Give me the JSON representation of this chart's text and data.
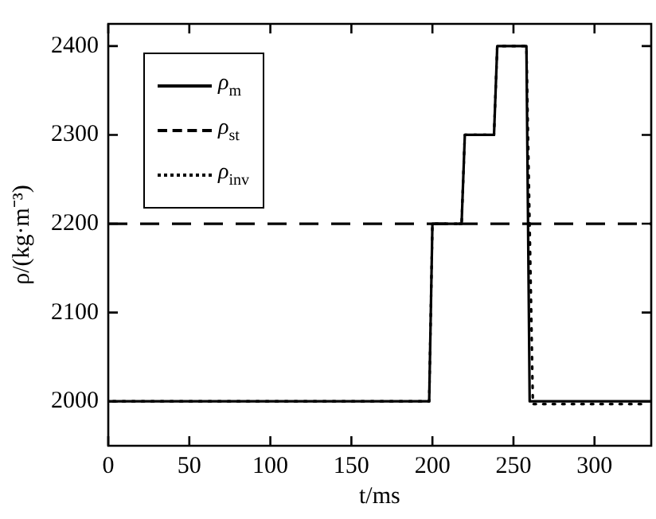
{
  "chart_data": {
    "type": "line",
    "xlabel": "t/ms",
    "ylabel": "ρ/(kg·m⁻³)",
    "xlim": [
      0,
      335
    ],
    "xticks": [
      0,
      50,
      100,
      150,
      200,
      250,
      300
    ],
    "ylim": [
      1950,
      2425
    ],
    "yticks": [
      2000,
      2100,
      2200,
      2300,
      2400
    ],
    "grid": false,
    "legend": "top left",
    "marker": "none",
    "series": [
      {
        "name": "ρ$_{m}$",
        "color": "#000000",
        "line_style": "solid",
        "x": [
          0,
          198,
          200,
          218,
          220,
          238,
          240,
          258,
          260,
          335
        ],
        "values": [
          2000,
          2000,
          2200,
          2200,
          2300,
          2300,
          2400,
          2400,
          2000,
          2000
        ]
      },
      {
        "name": "ρ$_{st}$",
        "color": "#000000",
        "line_style": "dashed",
        "x": [
          0,
          335
        ],
        "values": [
          2200,
          2200
        ]
      },
      {
        "name": "ρ$_{inv}$",
        "color": "#000000",
        "line_style": "dotted",
        "x": [
          3,
          198,
          200,
          218,
          220,
          238,
          240,
          258,
          262,
          332
        ],
        "values": [
          2000,
          2000,
          2200,
          2200,
          2300,
          2300,
          2400,
          2400,
          1997,
          1997
        ]
      }
    ]
  }
}
